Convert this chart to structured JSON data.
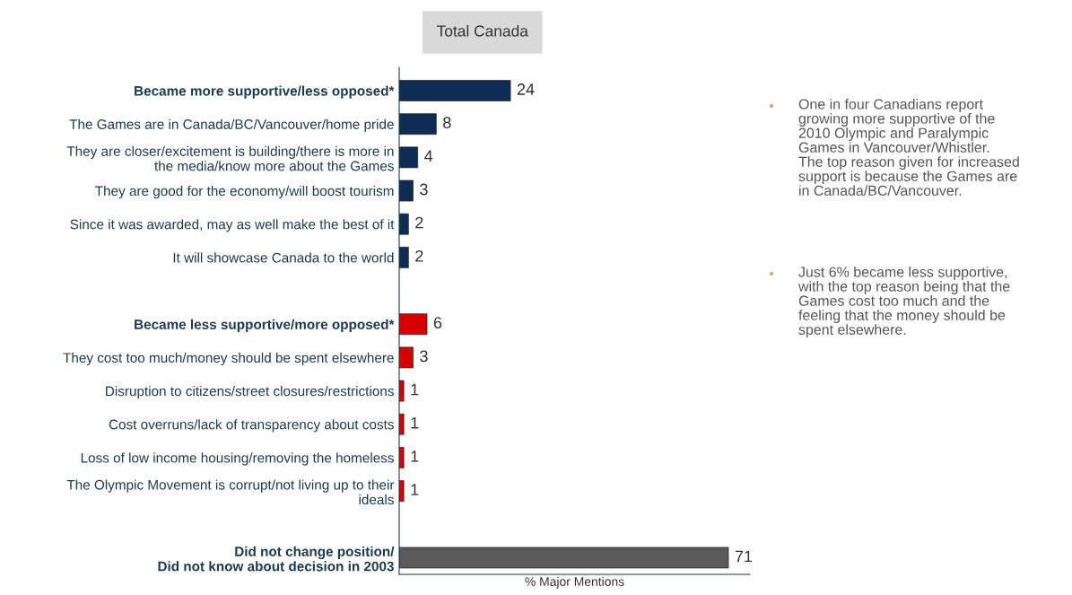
{
  "chart_data": {
    "type": "bar",
    "orientation": "horizontal",
    "title": "Total Canada",
    "xlabel": "% Major Mentions",
    "categories": [
      "Became more supportive/less opposed*",
      "The Games are in Canada/BC/Vancouver/home pride",
      "They are closer/excitement is building/there is more in\nthe media/know more about the Games",
      "They are good for the economy/will boost tourism",
      "Since it was awarded, may as well make the best of it",
      "It will showcase Canada to the world",
      null,
      "Became less supportive/more opposed*",
      "They cost too much/money should be spent elsewhere",
      "Disruption to citizens/street closures/restrictions",
      "Cost overruns/lack of transparency about costs",
      "Loss of low income housing/removing the homeless",
      "The Olympic Movement is corrupt/not living up to their\nideals",
      null,
      "Did not change position/\nDid not know about decision in 2003"
    ],
    "values": [
      24,
      8,
      4,
      3,
      2,
      2,
      null,
      6,
      3,
      1,
      1,
      1,
      1,
      null,
      71
    ],
    "colors": [
      "#0f2c55",
      "#0f2c55",
      "#0f2c55",
      "#0f2c55",
      "#0f2c55",
      "#0f2c55",
      null,
      "#d40000",
      "#d40000",
      "#d40000",
      "#d40000",
      "#d40000",
      "#d40000",
      null,
      "#5a5a5a"
    ],
    "data_labels": true,
    "grid": false,
    "legend": false,
    "annotations": [
      "One in four Canadians report\ngrowing more supportive of the\n2010 Olympic and Paralympic\nGames in Vancouver/Whistler.\nThe top reason given for increased\nsupport is because the Games are\nin Canada/BC/Vancouver.",
      "Just 6% became less supportive,\nwith the top reason being that the\nGames cost too much and the\nfeeling that the money should be\nspent elsewhere."
    ]
  }
}
